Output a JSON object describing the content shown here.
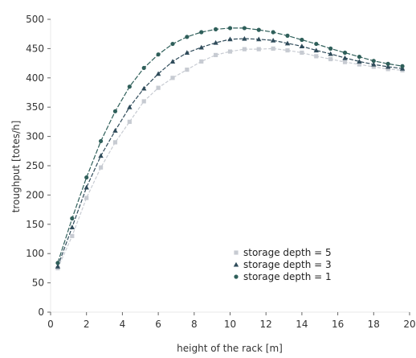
{
  "chart_data": {
    "type": "line",
    "xlabel": "height of the rack [m]",
    "ylabel": "troughput [totes/h]",
    "xlim": [
      0,
      20
    ],
    "ylim": [
      0,
      500
    ],
    "xticks": [
      0,
      2,
      4,
      6,
      8,
      10,
      12,
      14,
      16,
      18,
      20
    ],
    "yticks": [
      0,
      50,
      100,
      150,
      200,
      250,
      300,
      350,
      400,
      450,
      500
    ],
    "legend_position": "lower-right",
    "grid": false,
    "series": [
      {
        "name": "storage depth = 5",
        "marker": "square",
        "color": "#c7cbd2",
        "x": [
          0.4,
          1.2,
          2.0,
          2.8,
          3.6,
          4.4,
          5.2,
          6.0,
          6.8,
          7.6,
          8.4,
          9.2,
          10.0,
          10.8,
          11.6,
          12.4,
          13.2,
          14.0,
          14.8,
          15.6,
          16.4,
          17.2,
          18.0,
          18.8,
          19.6
        ],
        "values": [
          75,
          130,
          195,
          247,
          290,
          325,
          360,
          383,
          400,
          414,
          428,
          439,
          445,
          449,
          449,
          450,
          447,
          443,
          437,
          432,
          427,
          423,
          419,
          415,
          413
        ]
      },
      {
        "name": "storage depth = 3",
        "marker": "triangle",
        "color": "#2f4b5a",
        "x": [
          0.4,
          1.2,
          2.0,
          2.8,
          3.6,
          4.4,
          5.2,
          6.0,
          6.8,
          7.6,
          8.4,
          9.2,
          10.0,
          10.8,
          11.6,
          12.4,
          13.2,
          14.0,
          14.8,
          15.6,
          16.4,
          17.2,
          18.0,
          18.8,
          19.6
        ],
        "values": [
          78,
          145,
          213,
          267,
          310,
          350,
          382,
          407,
          428,
          443,
          452,
          460,
          466,
          467,
          466,
          464,
          459,
          454,
          447,
          441,
          434,
          428,
          423,
          419,
          416
        ]
      },
      {
        "name": "storage depth = 1",
        "marker": "circle",
        "color": "#2f5f5a",
        "x": [
          0.4,
          1.2,
          2.0,
          2.8,
          3.6,
          4.4,
          5.2,
          6.0,
          6.8,
          7.6,
          8.4,
          9.2,
          10.0,
          10.8,
          11.6,
          12.4,
          13.2,
          14.0,
          14.8,
          15.6,
          16.4,
          17.2,
          18.0,
          18.8,
          19.6
        ],
        "values": [
          84,
          160,
          230,
          292,
          343,
          385,
          417,
          440,
          458,
          470,
          478,
          483,
          485,
          485,
          482,
          478,
          472,
          465,
          458,
          450,
          443,
          436,
          429,
          424,
          420
        ]
      }
    ]
  }
}
